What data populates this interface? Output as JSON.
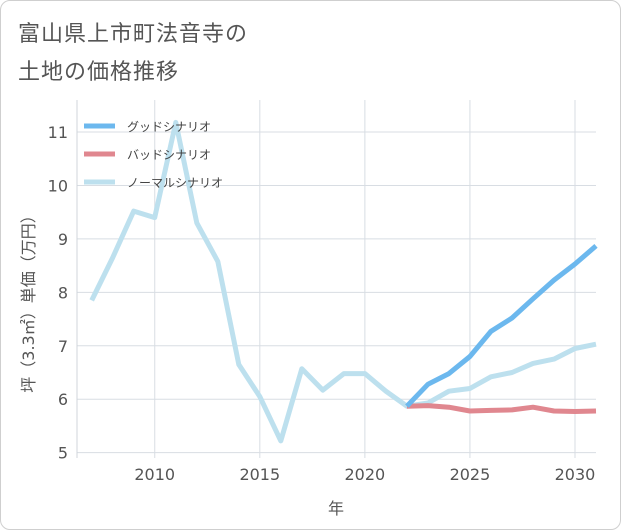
{
  "title": {
    "line1": "富山県上市町法音寺の",
    "line2": "土地の価格推移"
  },
  "chart_data": {
    "type": "line",
    "xlabel": "年",
    "ylabel": "坪（3.3㎡）単価（万円）",
    "xlim": [
      2006.3,
      2031
    ],
    "ylim": [
      4.9,
      11.6
    ],
    "xticks": [
      2010,
      2015,
      2020,
      2025,
      2030
    ],
    "yticks": [
      5,
      6,
      7,
      8,
      9,
      10,
      11
    ],
    "grid": true,
    "legend_position": "top-left",
    "series": [
      {
        "name": "グッドシナリオ",
        "color": "#6cb8ee",
        "points": [
          [
            2022,
            5.87
          ],
          [
            2023,
            6.28
          ],
          [
            2024,
            6.48
          ],
          [
            2025,
            6.8
          ],
          [
            2026,
            7.27
          ],
          [
            2027,
            7.52
          ],
          [
            2028,
            7.88
          ],
          [
            2029,
            8.23
          ],
          [
            2030,
            8.53
          ],
          [
            2031,
            8.87
          ]
        ]
      },
      {
        "name": "バッドシナリオ",
        "color": "#e0878f",
        "points": [
          [
            2022,
            5.87
          ],
          [
            2023,
            5.88
          ],
          [
            2024,
            5.85
          ],
          [
            2025,
            5.78
          ],
          [
            2026,
            5.79
          ],
          [
            2027,
            5.8
          ],
          [
            2028,
            5.85
          ],
          [
            2029,
            5.78
          ],
          [
            2030,
            5.77
          ],
          [
            2031,
            5.78
          ]
        ]
      },
      {
        "name": "ノーマルシナリオ",
        "color": "#bde0ee",
        "points": [
          [
            2007,
            7.85
          ],
          [
            2008,
            8.65
          ],
          [
            2009,
            9.52
          ],
          [
            2010,
            9.4
          ],
          [
            2011,
            11.18
          ],
          [
            2012,
            9.3
          ],
          [
            2013,
            8.58
          ],
          [
            2014,
            6.65
          ],
          [
            2015,
            6.05
          ],
          [
            2016,
            5.22
          ],
          [
            2017,
            6.57
          ],
          [
            2018,
            6.17
          ],
          [
            2019,
            6.48
          ],
          [
            2020,
            6.48
          ],
          [
            2021,
            6.15
          ],
          [
            2022,
            5.87
          ],
          [
            2023,
            5.93
          ],
          [
            2024,
            6.15
          ],
          [
            2025,
            6.2
          ],
          [
            2026,
            6.42
          ],
          [
            2027,
            6.5
          ],
          [
            2028,
            6.67
          ],
          [
            2029,
            6.75
          ],
          [
            2030,
            6.95
          ],
          [
            2031,
            7.03
          ]
        ]
      }
    ]
  }
}
